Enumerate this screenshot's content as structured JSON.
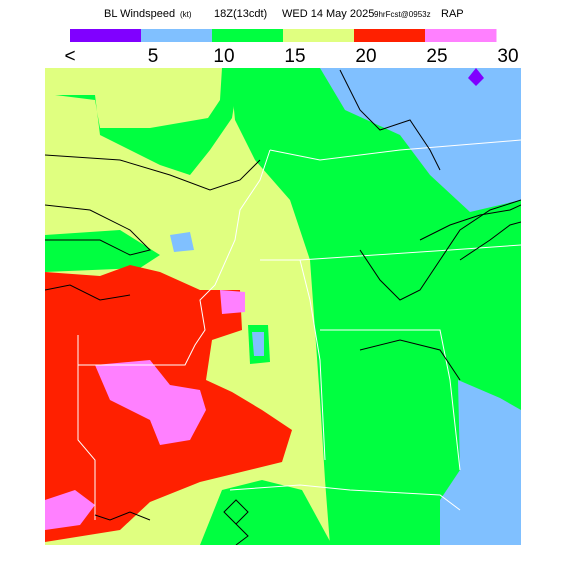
{
  "title": {
    "product": "BL Windspeed",
    "units": "(kt)",
    "valid": "18Z(13cdt)",
    "date": "WED 14 May 2025",
    "forecast": "9hrFcst@0953z",
    "model": "RAP"
  },
  "legend": {
    "labels": [
      "<",
      "5",
      "10",
      "15",
      "20",
      "25",
      "30"
    ],
    "colors": [
      "#8000ff",
      "#80c0ff",
      "#00ff40",
      "#e0ff80",
      "#ff2000",
      "#ff80ff"
    ]
  }
}
